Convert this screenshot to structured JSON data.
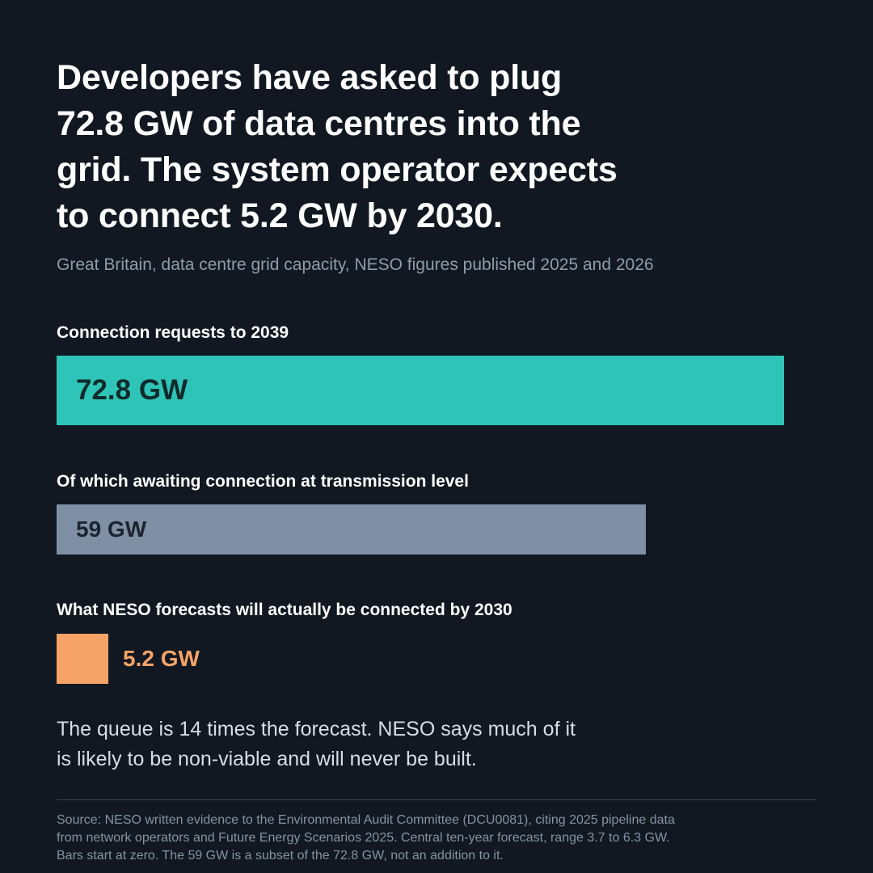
{
  "headline": {
    "lines": [
      "Developers have asked to plug",
      "72.8 GW of data centres into the",
      "grid. The system operator expects",
      "to connect 5.2 GW by 2030."
    ]
  },
  "subtitle": "Great Britain, data centre grid capacity, NESO figures published 2025 and 2026",
  "chart_data": {
    "type": "bar",
    "orientation": "horizontal",
    "unit": "GW",
    "xlim": [
      0,
      72.8
    ],
    "grid": false,
    "bars": [
      {
        "label": "Connection requests to 2039",
        "value": 72.8,
        "value_label": "72.8 GW",
        "color": "#2fc4b8"
      },
      {
        "label": "Of which awaiting connection at transmission level",
        "value": 59,
        "value_label": "59 GW",
        "color": "#8090a4"
      },
      {
        "label": "What NESO forecasts will actually be connected by 2030",
        "value": 5.2,
        "value_label": "5.2 GW",
        "color": "#f5a366"
      }
    ]
  },
  "takeaway": {
    "lines": [
      "The queue is 14 times the forecast. NESO says much of it",
      "is likely to be non-viable and will never be built."
    ]
  },
  "source": {
    "lines": [
      "Source: NESO written evidence to the Environmental Audit Committee (DCU0081), citing 2025 pipeline data",
      "from network operators and Future Energy Scenarios 2025. Central ten-year forecast, range 3.7 to 6.3 GW.",
      "Bars start at zero. The 59 GW is a subset of the 72.8 GW, not an addition to it."
    ]
  },
  "colors": {
    "background": "#111821",
    "teal": "#2fc4b8",
    "slate": "#8090a4",
    "orange": "#f5a366"
  }
}
